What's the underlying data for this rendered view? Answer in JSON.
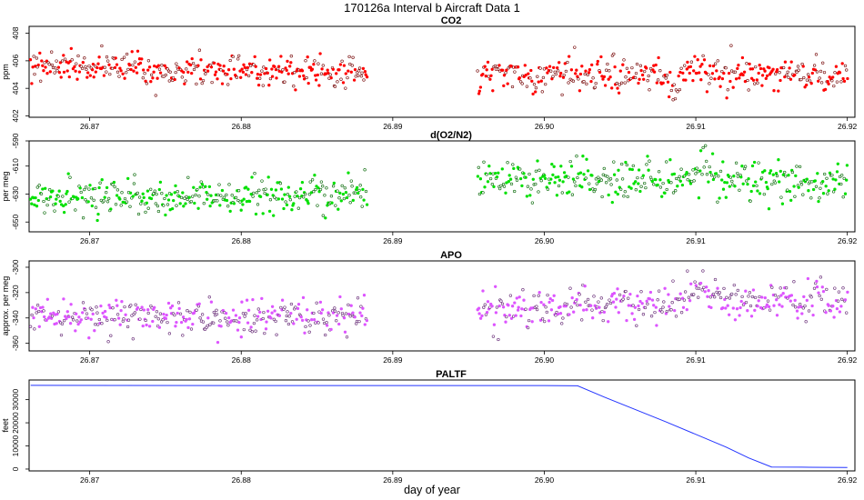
{
  "figure": {
    "title": "170126a   Interval b Aircraft Data 1",
    "xlabel": "day of year"
  },
  "chart_data": [
    {
      "type": "scatter",
      "title": "CO2",
      "ylabel": "ppm",
      "xlim": [
        26.866,
        26.9205
      ],
      "ylim": [
        401.9,
        408.5
      ],
      "yticks": [
        402,
        404,
        406,
        408
      ],
      "xticks": [
        26.87,
        26.88,
        26.89,
        26.9,
        26.91,
        26.92
      ],
      "xtick_labels": [
        "26.87",
        "26.88",
        "26.89",
        "26.90",
        "26.91",
        "26.92"
      ],
      "color": "#ff0000",
      "segments": [
        {
          "x_start": 26.8661,
          "x_end": 26.8883,
          "y_start": 405.6,
          "y_end": 405.1,
          "noise": 0.55,
          "n": 340
        },
        {
          "x_start": 26.8956,
          "x_end": 26.92,
          "y_start": 405.0,
          "y_end": 405.0,
          "noise": 0.6,
          "n": 360
        }
      ],
      "features": [
        {
          "x": 26.9097,
          "dy": 1.2,
          "width": 0.0008
        },
        {
          "x": 26.9085,
          "dy": -1.4,
          "width": 0.0006
        }
      ]
    },
    {
      "type": "scatter",
      "title": "d(O2/N2)",
      "ylabel": "per meg",
      "xlim": [
        26.866,
        26.9205
      ],
      "ylim": [
        -657,
        -592
      ],
      "yticks": [
        -590,
        -610,
        -630,
        -650
      ],
      "xticks": [
        26.87,
        26.88,
        26.89,
        26.9,
        26.91,
        26.92
      ],
      "xtick_labels": [
        "26.87",
        "26.88",
        "26.89",
        "26.90",
        "26.91",
        "26.92"
      ],
      "color": "#00e000",
      "segments": [
        {
          "x_start": 26.8661,
          "x_end": 26.8883,
          "y_start": -633,
          "y_end": -630,
          "noise": 6.5,
          "n": 340
        },
        {
          "x_start": 26.8956,
          "x_end": 26.92,
          "y_start": -620,
          "y_end": -622,
          "noise": 7,
          "n": 360
        }
      ],
      "features": [
        {
          "x": 26.9105,
          "dy": 14,
          "width": 0.0007
        }
      ]
    },
    {
      "type": "scatter",
      "title": "APO",
      "ylabel": "approx. per meg",
      "xlim": [
        26.866,
        26.9205
      ],
      "ylim": [
        -366,
        -295
      ],
      "yticks": [
        -300,
        -320,
        -340,
        -360
      ],
      "xticks": [
        26.87,
        26.88,
        26.89,
        26.9,
        26.91,
        26.92
      ],
      "xtick_labels": [
        "26.87",
        "26.88",
        "26.89",
        "26.90",
        "26.91",
        "26.92"
      ],
      "color": "#dd55ff",
      "segments": [
        {
          "x_start": 26.8661,
          "x_end": 26.8883,
          "y_start": -340,
          "y_end": -338,
          "noise": 7,
          "n": 340
        },
        {
          "x_start": 26.8956,
          "x_end": 26.92,
          "y_start": -332,
          "y_end": -325,
          "noise": 7.5,
          "n": 360
        }
      ],
      "features": [
        {
          "x": 26.9102,
          "dy": 22,
          "width": 0.0006
        }
      ]
    },
    {
      "type": "line",
      "title": "PALTF",
      "ylabel": "feet",
      "xlim": [
        26.866,
        26.9205
      ],
      "ylim": [
        -800,
        38500
      ],
      "yticks": [
        0,
        10000,
        20000,
        30000
      ],
      "xticks": [
        26.87,
        26.88,
        26.89,
        26.9,
        26.91,
        26.92
      ],
      "xtick_labels": [
        "26.87",
        "26.88",
        "26.89",
        "26.90",
        "26.91",
        "26.92"
      ],
      "color": "#2233ff",
      "x": [
        26.8661,
        26.88,
        26.9,
        26.9022,
        26.904,
        26.908,
        26.912,
        26.9135,
        26.915,
        26.917,
        26.92
      ],
      "y": [
        36200,
        36100,
        36100,
        36000,
        31000,
        20500,
        9500,
        4800,
        900,
        800,
        700
      ]
    }
  ]
}
